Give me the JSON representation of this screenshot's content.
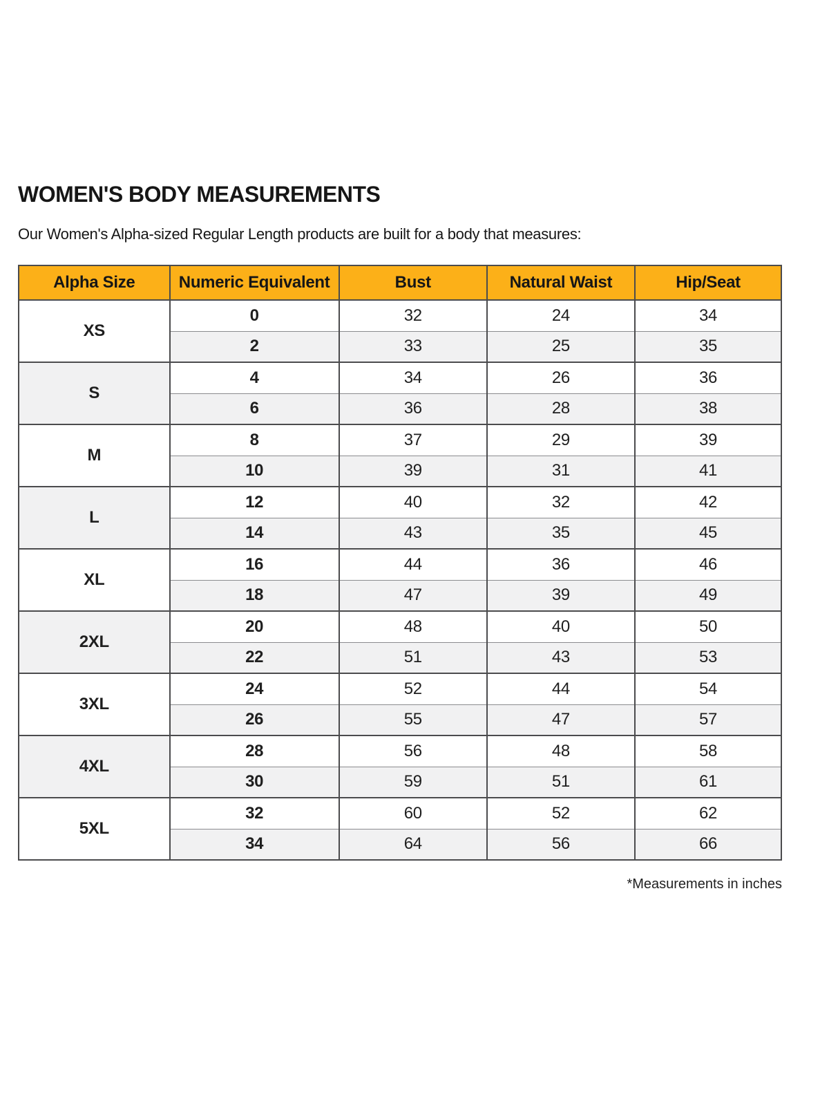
{
  "page": {
    "title": "WOMEN'S BODY MEASUREMENTS",
    "subtitle": "Our Women's Alpha-sized Regular Length products are built for a body that measures:",
    "footnote": "*Measurements in inches"
  },
  "colors": {
    "header_bg": "#FCB018",
    "row_shade": "#F1F1F2",
    "border_strong": "#4B4B4D",
    "border_light": "#8A8B8E",
    "text": "#1A1A1A"
  },
  "table": {
    "columns": [
      "Alpha Size",
      "Numeric Equivalent",
      "Bust",
      "Natural Waist",
      "Hip/Seat"
    ],
    "groups": [
      {
        "alpha": "XS",
        "rows": [
          [
            "0",
            "32",
            "24",
            "34"
          ],
          [
            "2",
            "33",
            "25",
            "35"
          ]
        ]
      },
      {
        "alpha": "S",
        "rows": [
          [
            "4",
            "34",
            "26",
            "36"
          ],
          [
            "6",
            "36",
            "28",
            "38"
          ]
        ]
      },
      {
        "alpha": "M",
        "rows": [
          [
            "8",
            "37",
            "29",
            "39"
          ],
          [
            "10",
            "39",
            "31",
            "41"
          ]
        ]
      },
      {
        "alpha": "L",
        "rows": [
          [
            "12",
            "40",
            "32",
            "42"
          ],
          [
            "14",
            "43",
            "35",
            "45"
          ]
        ]
      },
      {
        "alpha": "XL",
        "rows": [
          [
            "16",
            "44",
            "36",
            "46"
          ],
          [
            "18",
            "47",
            "39",
            "49"
          ]
        ]
      },
      {
        "alpha": "2XL",
        "rows": [
          [
            "20",
            "48",
            "40",
            "50"
          ],
          [
            "22",
            "51",
            "43",
            "53"
          ]
        ]
      },
      {
        "alpha": "3XL",
        "rows": [
          [
            "24",
            "52",
            "44",
            "54"
          ],
          [
            "26",
            "55",
            "47",
            "57"
          ]
        ]
      },
      {
        "alpha": "4XL",
        "rows": [
          [
            "28",
            "56",
            "48",
            "58"
          ],
          [
            "30",
            "59",
            "51",
            "61"
          ]
        ]
      },
      {
        "alpha": "5XL",
        "rows": [
          [
            "32",
            "60",
            "52",
            "62"
          ],
          [
            "34",
            "64",
            "56",
            "66"
          ]
        ]
      }
    ]
  }
}
